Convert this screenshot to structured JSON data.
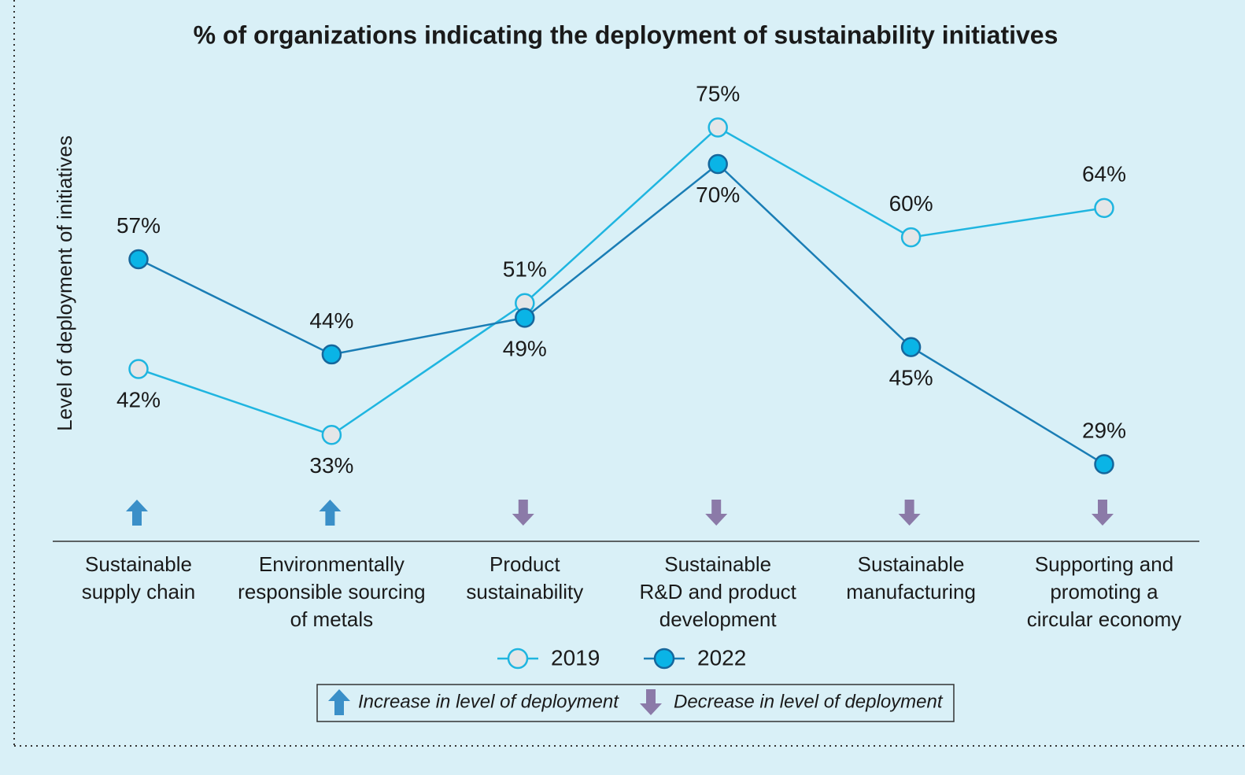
{
  "chart_data": {
    "type": "line",
    "title": "% of organizations indicating the deployment of sustainability initiatives",
    "y_label": "Level of deployment of initiatives",
    "categories": [
      "Sustainable\nsupply chain",
      "Environmentally\nresponsible sourcing\nof metals",
      "Product\nsustainability",
      "Sustainable\nR&D and product\ndevelopment",
      "Sustainable\nmanufacturing",
      "Supporting and\npromoting a\ncircular economy"
    ],
    "series": [
      {
        "name": "2019",
        "color": "#1fb5e0",
        "marker_fill": "#e4e6e8",
        "values": [
          42,
          33,
          51,
          75,
          60,
          64
        ],
        "value_labels": [
          "42%",
          "33%",
          "51%",
          "75%",
          "60%",
          "64%"
        ]
      },
      {
        "name": "2022",
        "color": "#1a7db5",
        "marker_fill": "#0ab4e6",
        "values": [
          57,
          44,
          49,
          70,
          45,
          29
        ],
        "value_labels": [
          "57%",
          "44%",
          "49%",
          "70%",
          "45%",
          "29%"
        ]
      }
    ],
    "trend_legend": {
      "increase": "Increase in level of deployment",
      "decrease": "Decrease  in level of deployment",
      "increase_color": "#3a8fc8",
      "decrease_color": "#8b7aa8"
    }
  }
}
